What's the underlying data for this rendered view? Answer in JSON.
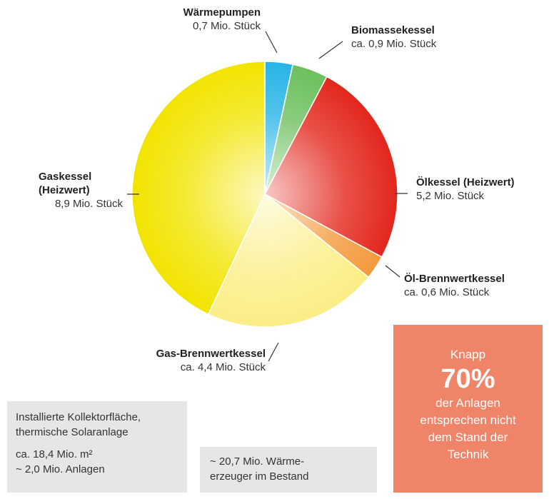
{
  "chart_data": {
    "type": "pie",
    "categories": [
      "Wärmepumpen",
      "Biomassekessel",
      "Ölkessel (Heizwert)",
      "Öl-Brennwertkessel",
      "Gas-Brennwertkessel",
      "Gaskessel (Heizwert)"
    ],
    "values": [
      0.7,
      0.9,
      5.2,
      0.6,
      4.4,
      8.9
    ],
    "value_labels": [
      "0,7 Mio. Stück",
      "ca. 0,9 Mio. Stück",
      "5,2 Mio. Stück",
      "ca. 0,6 Mio. Stück",
      "ca. 4,4 Mio. Stück",
      "8,9 Mio. Stück"
    ],
    "colors": [
      "#27b4e6",
      "#6cbf5e",
      "#e3261c",
      "#f39a3c",
      "#fbee86",
      "#f2e400"
    ]
  },
  "solar_box": {
    "title": "Installierte Kollektorfläche, thermische Solaranlage",
    "lines": [
      "ca. 18,4 Mio. m²",
      "~ 2,0 Mio. Anlagen"
    ]
  },
  "total_box": {
    "lines": [
      "~ 20,7 Mio. Wärme-",
      "erzeuger im Bestand"
    ]
  },
  "highlight_box": {
    "intro": "Knapp",
    "figure": "70%",
    "lines": [
      "der Anlagen",
      "entsprechen nicht",
      "dem Stand der",
      "Technik"
    ]
  }
}
